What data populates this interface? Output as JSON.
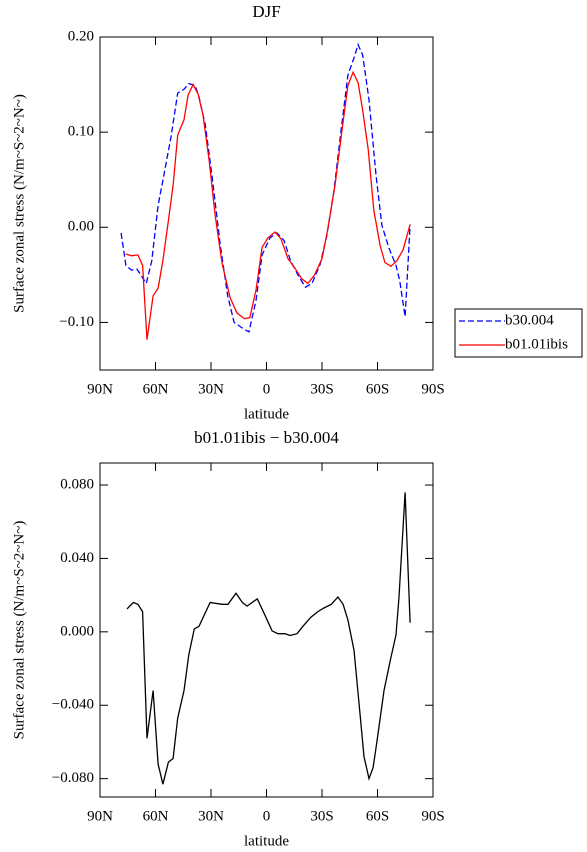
{
  "chart_data": [
    {
      "type": "line",
      "title": "DJF",
      "xlabel": "latitude",
      "ylabel": "Surface zonal stress (N/m~S~2~N~)",
      "xlim": [
        90,
        -90
      ],
      "xticks": [
        {
          "value": 90,
          "label": "90N"
        },
        {
          "value": 60,
          "label": "60N"
        },
        {
          "value": 30,
          "label": "30N"
        },
        0,
        {
          "value": -30,
          "label": "30S"
        },
        {
          "value": -60,
          "label": "60S"
        },
        {
          "value": -90,
          "label": "90S"
        }
      ],
      "ylim": [
        -0.15,
        0.2
      ],
      "yticks": [
        {
          "value": -0.1,
          "label": "−0.10"
        },
        {
          "value": 0,
          "label": "0.00"
        },
        {
          "value": 0.1,
          "label": "0.10"
        },
        {
          "value": 0.2,
          "label": "0.20"
        }
      ],
      "legend": "right",
      "series": [
        {
          "name": "b30.004",
          "color": "#0000ff",
          "linestyle": "dashed",
          "x": [
            78.6,
            76,
            73,
            70,
            65,
            62,
            58.6,
            55,
            51.6,
            48,
            44.6,
            42,
            38.6,
            36.5,
            33,
            29.5,
            25,
            21,
            17.5,
            13,
            9.5,
            5.7,
            2.4,
            -1.9,
            -5.7,
            -9.5,
            -13,
            -17,
            -21,
            -24.6,
            -29,
            -32.7,
            -36.5,
            -40.3,
            -44,
            -47.3,
            -49.5,
            -52,
            -55.4,
            -59.2,
            -62.4,
            -66.2,
            -70,
            -72,
            -74.9,
            -77.6
          ],
          "values": [
            -0.006,
            -0.04,
            -0.045,
            -0.044,
            -0.059,
            -0.035,
            0.023,
            0.06,
            0.095,
            0.141,
            0.145,
            0.151,
            0.149,
            0.137,
            0.107,
            0.055,
            -0.019,
            -0.072,
            -0.1,
            -0.106,
            -0.11,
            -0.077,
            -0.029,
            -0.011,
            -0.006,
            -0.014,
            -0.035,
            -0.05,
            -0.063,
            -0.059,
            -0.039,
            -0.008,
            0.039,
            0.102,
            0.16,
            0.178,
            0.192,
            0.181,
            0.134,
            0.055,
            0.002,
            -0.022,
            -0.04,
            -0.056,
            -0.094,
            0.002
          ]
        },
        {
          "name": "b01.01ibis",
          "color": "#ff0000",
          "linestyle": "solid",
          "x": [
            76,
            73,
            69.5,
            67,
            64.6,
            61.3,
            58.6,
            56,
            53,
            50.5,
            48,
            44.6,
            42.4,
            39.7,
            37,
            34.3,
            31,
            27.8,
            24,
            19.7,
            16,
            12,
            9,
            5.7,
            2.4,
            -0.8,
            -4.6,
            -7.8,
            -11.6,
            -15.4,
            -19,
            -22.4,
            -26,
            -30,
            -33,
            -37,
            -40.8,
            -44,
            -46.8,
            -49.5,
            -52,
            -55,
            -58,
            -61.4,
            -64,
            -67.3,
            -70.5,
            -73.8,
            -77.6
          ],
          "values": [
            -0.028,
            -0.03,
            -0.029,
            -0.04,
            -0.118,
            -0.072,
            -0.064,
            -0.035,
            0.007,
            0.044,
            0.097,
            0.113,
            0.139,
            0.15,
            0.14,
            0.118,
            0.07,
            0.013,
            -0.038,
            -0.074,
            -0.09,
            -0.096,
            -0.095,
            -0.066,
            -0.021,
            -0.011,
            -0.005,
            -0.012,
            -0.033,
            -0.043,
            -0.054,
            -0.059,
            -0.05,
            -0.033,
            -0.003,
            0.044,
            0.102,
            0.149,
            0.163,
            0.152,
            0.123,
            0.081,
            0.018,
            -0.019,
            -0.037,
            -0.041,
            -0.035,
            -0.024,
            0.003
          ]
        }
      ]
    },
    {
      "type": "line",
      "title": "b01.01ibis − b30.004",
      "xlabel": "latitude",
      "ylabel": "Surface zonal stress (N/m~S~2~N~)",
      "xlim": [
        90,
        -90
      ],
      "xticks": [
        {
          "value": 90,
          "label": "90N"
        },
        {
          "value": 60,
          "label": "60N"
        },
        {
          "value": 30,
          "label": "30N"
        },
        0,
        {
          "value": -30,
          "label": "30S"
        },
        {
          "value": -60,
          "label": "60S"
        },
        {
          "value": -90,
          "label": "90S"
        }
      ],
      "ylim": [
        -0.09,
        0.092
      ],
      "yticks": [
        {
          "value": -0.08,
          "label": "−0.080"
        },
        {
          "value": -0.04,
          "label": "−0.040"
        },
        {
          "value": 0,
          "label": "0.000"
        },
        {
          "value": 0.04,
          "label": "0.040"
        },
        {
          "value": 0.08,
          "label": "0.080"
        }
      ],
      "color": "#000000",
      "x": [
        75.4,
        72,
        69.5,
        67,
        64.6,
        61.3,
        58.6,
        56,
        53,
        50.5,
        48,
        44.6,
        42,
        39,
        36.5,
        30.5,
        24,
        20.8,
        16.5,
        13,
        10.5,
        5,
        0.8,
        -3,
        -6.2,
        -10,
        -12.7,
        -16.5,
        -19.7,
        -24,
        -27.8,
        -31,
        -35,
        -38.6,
        -41.4,
        -44,
        -47.3,
        -50.5,
        -52.7,
        -55.4,
        -57.6,
        -59.7,
        -63.5,
        -66.8,
        -70,
        -71.6,
        -74.9,
        -77.6
      ],
      "values": [
        0.0125,
        0.016,
        0.015,
        0.011,
        -0.058,
        -0.032,
        -0.072,
        -0.083,
        -0.071,
        -0.069,
        -0.047,
        -0.032,
        -0.0125,
        0.0016,
        0.003,
        0.016,
        0.015,
        0.015,
        0.021,
        0.016,
        0.014,
        0.018,
        0.009,
        0.0005,
        -0.001,
        -0.001,
        -0.002,
        -0.001,
        0.003,
        0.008,
        0.011,
        0.013,
        0.015,
        0.019,
        0.015,
        0.0065,
        -0.01,
        -0.044,
        -0.068,
        -0.08,
        -0.074,
        -0.06,
        -0.032,
        -0.016,
        -0.0016,
        0.019,
        0.076,
        0.005
      ]
    }
  ]
}
